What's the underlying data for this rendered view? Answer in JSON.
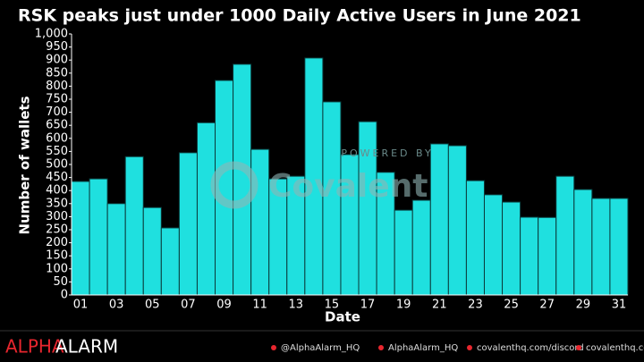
{
  "chart_data": {
    "type": "bar",
    "title": "RSK peaks just under 1000 Daily Active Users in June 2021",
    "x_label": "Date",
    "y_label": "Number of wallets",
    "categories": [
      "01",
      null,
      "03",
      null,
      "05",
      null,
      "07",
      null,
      "09",
      null,
      "11",
      null,
      "13",
      null,
      "15",
      null,
      "17",
      null,
      "19",
      null,
      "21",
      null,
      "23",
      null,
      "25",
      null,
      "27",
      null,
      "29",
      null,
      "31"
    ],
    "values": [
      435,
      445,
      350,
      530,
      335,
      257,
      545,
      660,
      822,
      884,
      558,
      445,
      455,
      908,
      740,
      538,
      664,
      470,
      325,
      363,
      579,
      572,
      438,
      384,
      356,
      298,
      297,
      455,
      404,
      370,
      370
    ],
    "color": "#1fe0df",
    "ylim": [
      0,
      1000
    ],
    "yticks": [
      0,
      50,
      100,
      150,
      200,
      250,
      300,
      350,
      400,
      450,
      500,
      550,
      600,
      650,
      700,
      750,
      800,
      850,
      900,
      950,
      {
        "value": 1000,
        "label": "1,000"
      }
    ],
    "grid": false,
    "watermark": {
      "small": "POWERED BY",
      "large": "Covalent"
    }
  },
  "footer": {
    "brand_1": "ALPHA",
    "brand_2": "ALARM",
    "twitter": "@AlphaAlarm_HQ",
    "telegram": "AlphaAlarm_HQ",
    "discord": "covalenthq.com/discord",
    "web": "covalenthq.com"
  }
}
